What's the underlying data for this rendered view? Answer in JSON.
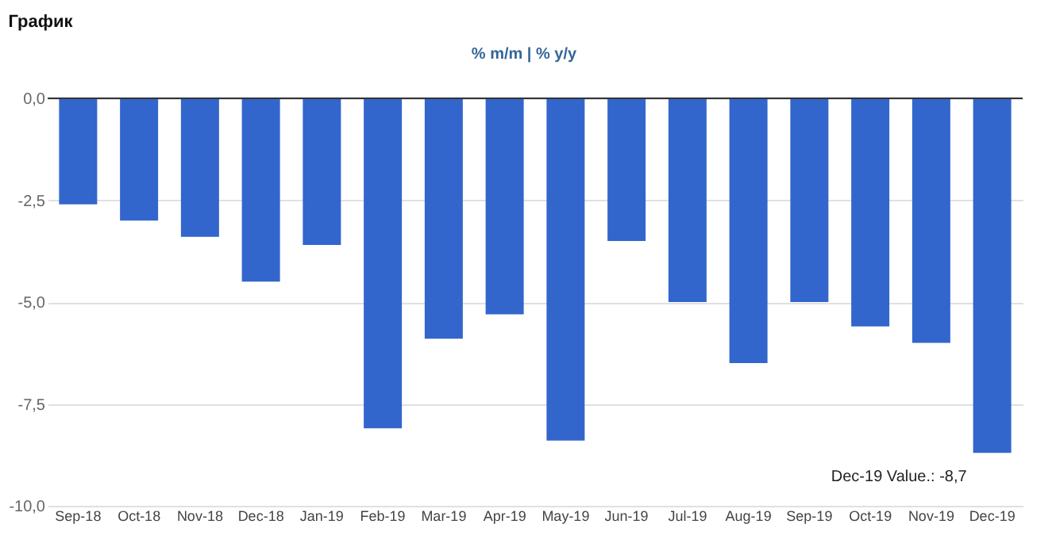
{
  "chart_data": {
    "type": "bar",
    "title": "График",
    "categories": [
      "Sep-18",
      "Oct-18",
      "Nov-18",
      "Dec-18",
      "Jan-19",
      "Feb-19",
      "Mar-19",
      "Apr-19",
      "May-19",
      "Jun-19",
      "Jul-19",
      "Aug-19",
      "Sep-19",
      "Oct-19",
      "Nov-19",
      "Dec-19"
    ],
    "values": [
      -2.6,
      -3.0,
      -3.4,
      -4.5,
      -3.6,
      -8.1,
      -5.9,
      -5.3,
      -8.4,
      -3.5,
      -5.0,
      -6.5,
      -5.0,
      -5.6,
      -6.0,
      -8.7
    ],
    "color": "#3366cc",
    "ylim": [
      -10,
      0
    ],
    "yticks": [
      {
        "value": -10,
        "label": "-10,0"
      },
      {
        "value": -7.5,
        "label": "-7,5"
      },
      {
        "value": -5,
        "label": "-5,0"
      },
      {
        "value": -2.5,
        "label": "-2,5"
      },
      {
        "value": 0,
        "label": "0,0"
      }
    ],
    "grid": "y",
    "annotations": [
      "% m/m | % y/y",
      {
        "text": "Dec-19 Value.: -8,7",
        "x": "Dec-19",
        "y": -8.7
      }
    ]
  }
}
